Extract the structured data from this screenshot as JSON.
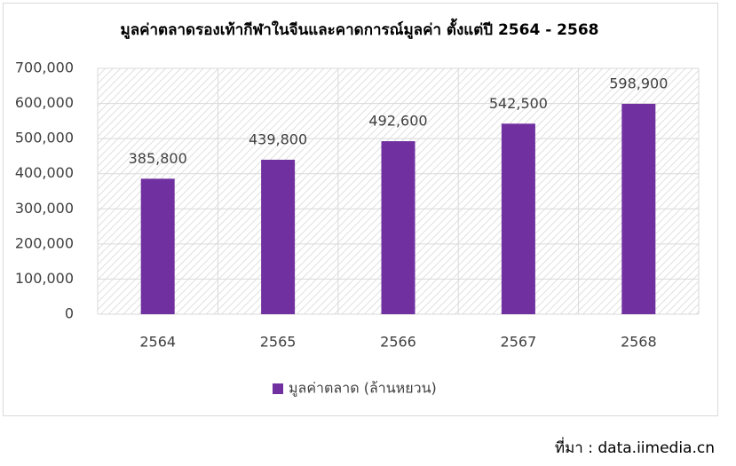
{
  "chart_data": {
    "type": "bar",
    "title": "มูลค่าตลาดรองเท้ากีฬาในจีนและคาดการณ์มูลค่า ตั้งแต่ปี 2564 - 2568",
    "categories": [
      "2564",
      "2565",
      "2566",
      "2567",
      "2568"
    ],
    "series": [
      {
        "name": "มูลค่าตลาด (ล้านหยวน)",
        "color": "#7030a0",
        "values": [
          385800,
          439800,
          492600,
          542500,
          598900
        ],
        "value_labels": [
          "385,800",
          "439,800",
          "492,600",
          "542,500",
          "598,900"
        ]
      }
    ],
    "ylim": [
      0,
      700000
    ],
    "yticks": [
      0,
      {
        "value": 100000,
        "label": "100,000"
      },
      {
        "value": 200000,
        "label": "200,000"
      },
      {
        "value": 300000,
        "label": "300,000"
      },
      {
        "value": 400000,
        "label": "400,000"
      },
      {
        "value": 500000,
        "label": "500,000"
      },
      {
        "value": 600000,
        "label": "600,000"
      },
      {
        "value": 700000,
        "label": "700,000"
      }
    ],
    "grid": true,
    "legend": "bottom",
    "source": "ที่มา : data.iimedia.cn"
  }
}
